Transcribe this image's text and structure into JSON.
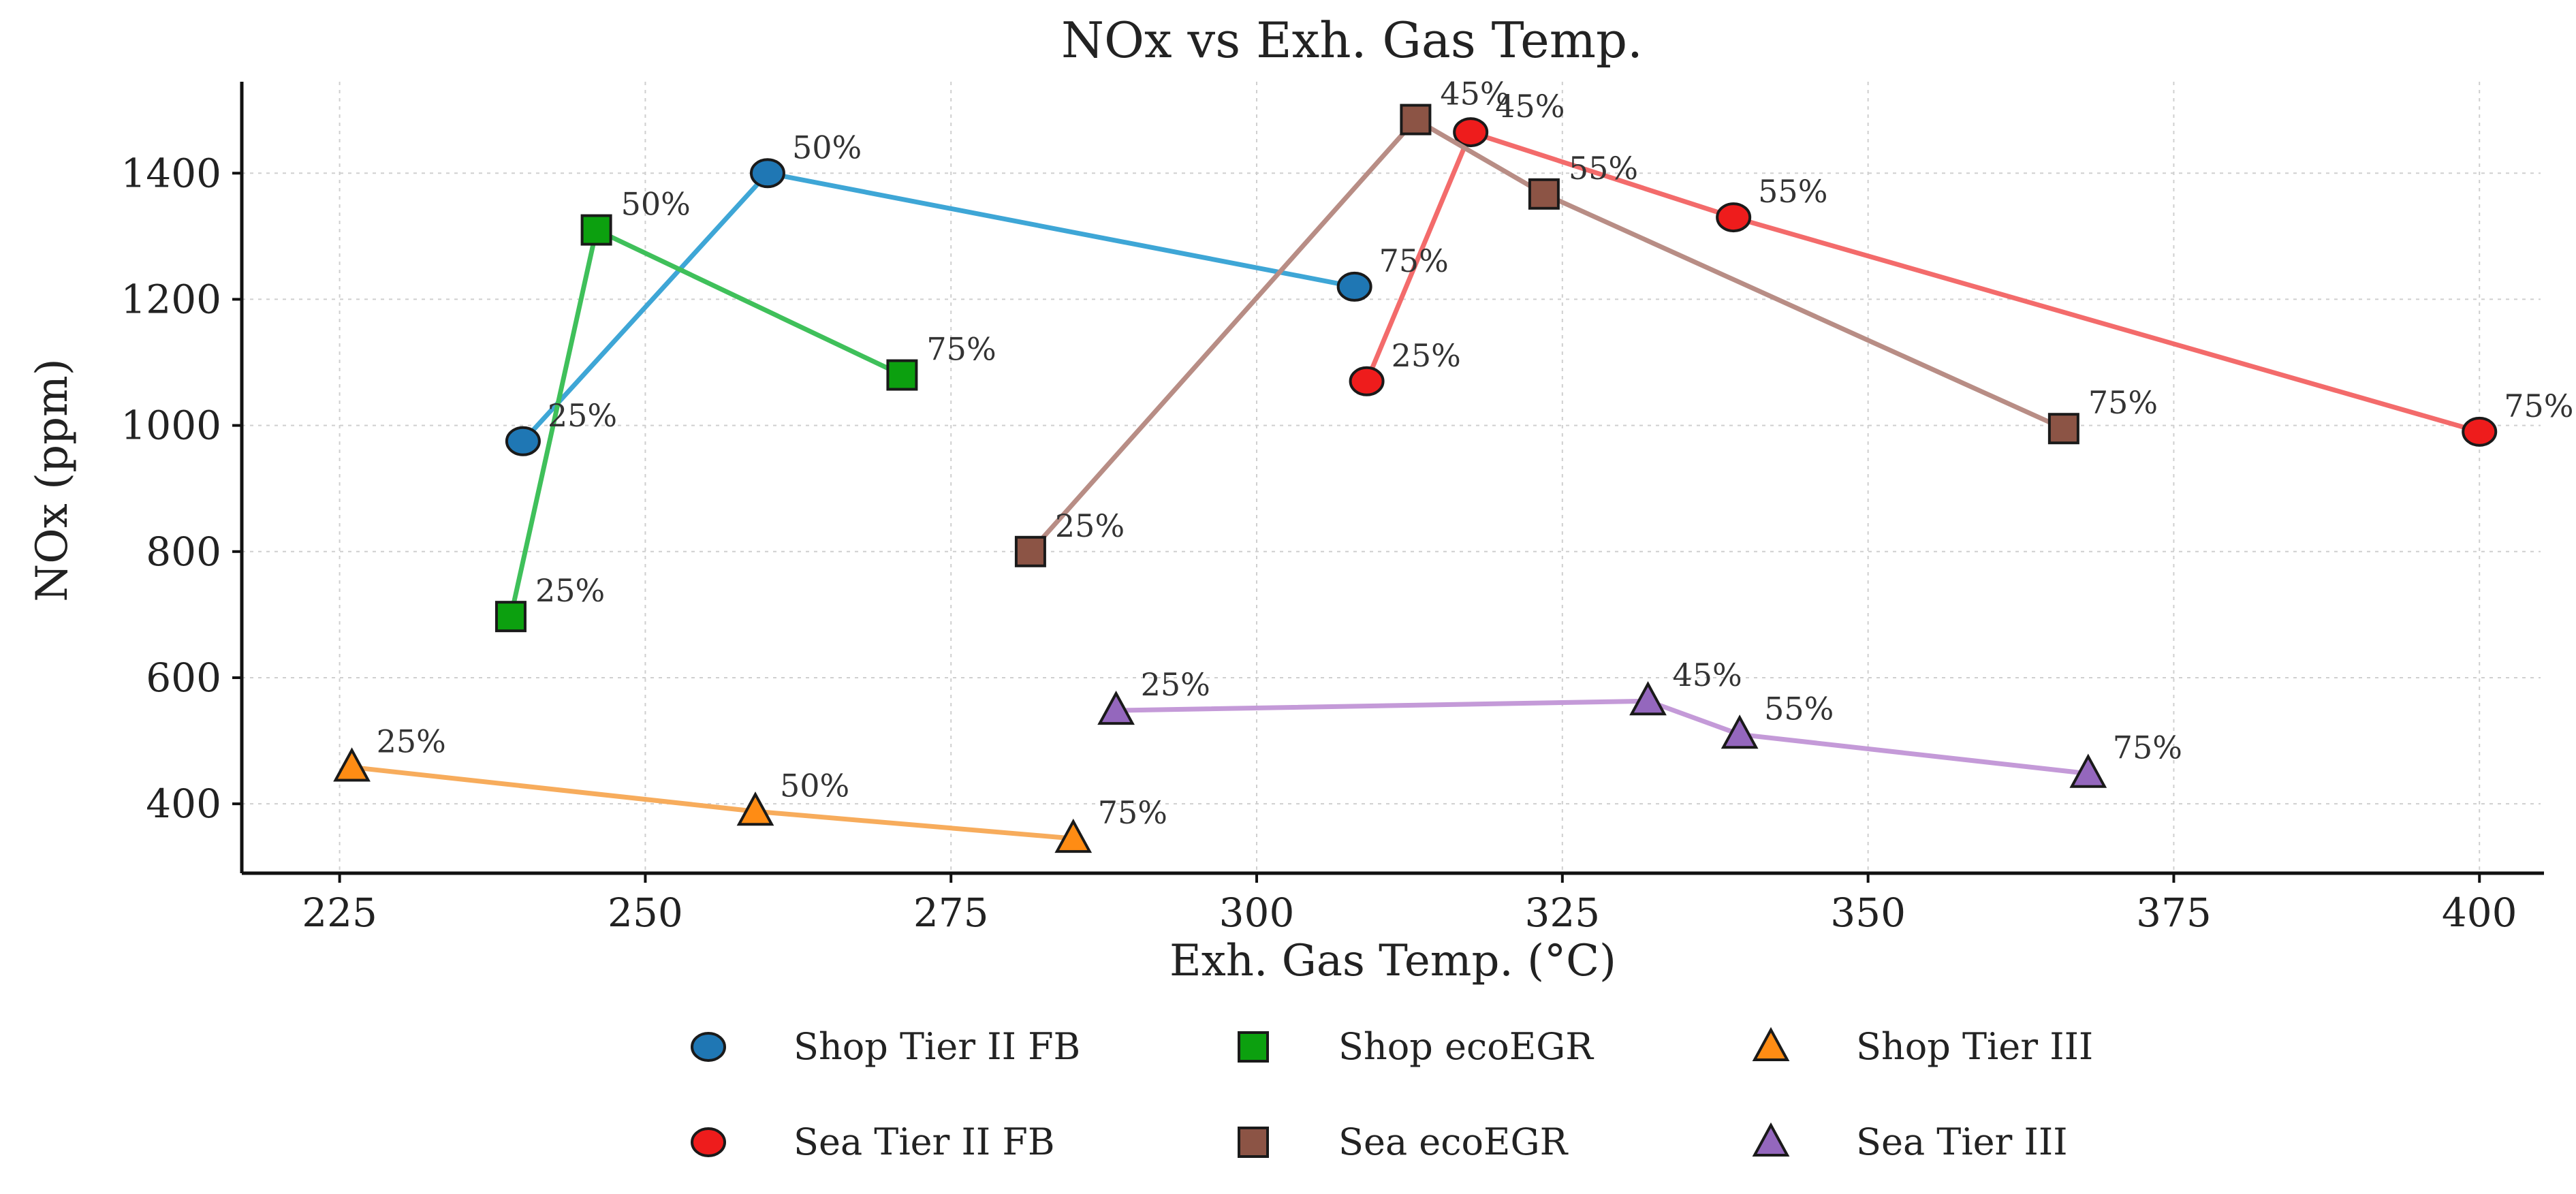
{
  "chart_data": {
    "type": "line",
    "title": "NOx vs Exh. Gas Temp.",
    "xlabel": "Exh. Gas Temp. (°C)",
    "ylabel": "NOx (ppm)",
    "xlim": [
      217,
      405
    ],
    "ylim": [
      290,
      1545
    ],
    "xticks": [
      225,
      250,
      275,
      300,
      325,
      350,
      375,
      400
    ],
    "yticks": [
      400,
      600,
      800,
      1000,
      1200,
      1400
    ],
    "grid": true,
    "legend_position": "bottom",
    "series": [
      {
        "name": "Shop Tier II FB",
        "line_color": "#3ea6d6",
        "marker_color": "#1f77b4",
        "marker": "circle",
        "points": [
          {
            "x": 240,
            "y": 975,
            "label": "25%"
          },
          {
            "x": 260,
            "y": 1400,
            "label": "50%"
          },
          {
            "x": 308,
            "y": 1220,
            "label": "75%"
          }
        ]
      },
      {
        "name": "Shop ecoEGR",
        "line_color": "#3fc05a",
        "marker_color": "#0ca00f",
        "marker": "square",
        "points": [
          {
            "x": 239,
            "y": 697,
            "label": "25%"
          },
          {
            "x": 246,
            "y": 1310,
            "label": "50%"
          },
          {
            "x": 271,
            "y": 1080,
            "label": "75%"
          }
        ]
      },
      {
        "name": "Shop Tier III",
        "line_color": "#f7ac5c",
        "marker_color": "#ff8c14",
        "marker": "triangle",
        "points": [
          {
            "x": 226,
            "y": 458,
            "label": "25%"
          },
          {
            "x": 259,
            "y": 388,
            "label": "50%"
          },
          {
            "x": 285,
            "y": 345,
            "label": "75%"
          }
        ]
      },
      {
        "name": "Sea Tier II FB",
        "line_color": "#f36b6b",
        "marker_color": "#ee1c1c",
        "marker": "circle",
        "points": [
          {
            "x": 309,
            "y": 1070,
            "label": "25%"
          },
          {
            "x": 317.5,
            "y": 1465,
            "label": "45%"
          },
          {
            "x": 339,
            "y": 1330,
            "label": "55%"
          },
          {
            "x": 400,
            "y": 990,
            "label": "75%"
          }
        ]
      },
      {
        "name": "Sea ecoEGR",
        "line_color": "#b88d85",
        "marker_color": "#8c5445",
        "marker": "square",
        "points": [
          {
            "x": 281.5,
            "y": 800,
            "label": "25%"
          },
          {
            "x": 313,
            "y": 1485,
            "label": "45%"
          },
          {
            "x": 323.5,
            "y": 1367,
            "label": "55%"
          },
          {
            "x": 366,
            "y": 995,
            "label": "75%"
          }
        ]
      },
      {
        "name": "Sea Tier III",
        "line_color": "#c49ad8",
        "marker_color": "#9467bd",
        "marker": "triangle",
        "points": [
          {
            "x": 288.5,
            "y": 548,
            "label": "25%"
          },
          {
            "x": 332,
            "y": 563,
            "label": "45%"
          },
          {
            "x": 339.5,
            "y": 510,
            "label": "55%"
          },
          {
            "x": 368,
            "y": 448,
            "label": "75%"
          }
        ]
      }
    ]
  }
}
